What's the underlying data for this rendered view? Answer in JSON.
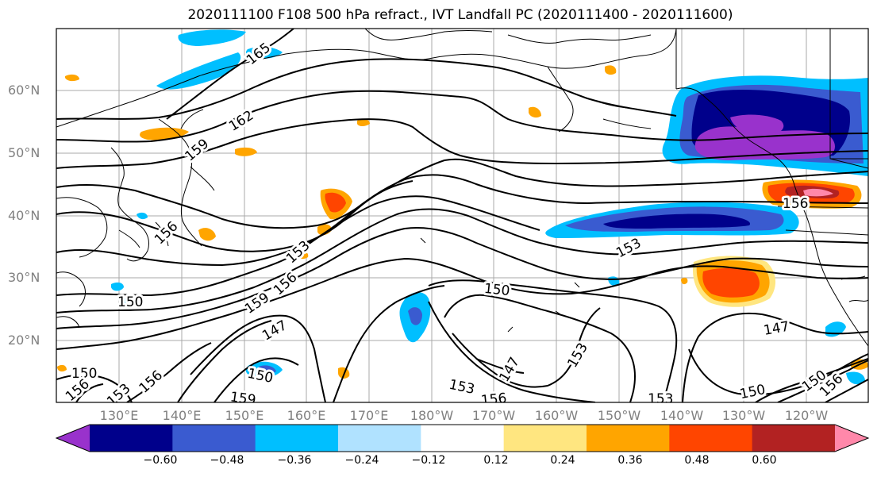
{
  "title": "2020111100 F108 500 hPa refract., IVT Landfall PC (2020111400 - 2020111600)",
  "latitude_labels": [
    "60°N",
    "50°N",
    "40°N",
    "30°N",
    "20°N"
  ],
  "longitude_labels": [
    "130°E",
    "140°E",
    "150°E",
    "160°E",
    "170°E",
    "180°W",
    "170°W",
    "160°W",
    "150°W",
    "140°W",
    "130°W",
    "120°W"
  ],
  "contour_labels": [
    "165",
    "162",
    "159",
    "156",
    "153",
    "156",
    "159",
    "150",
    "147",
    "150",
    "153",
    "156",
    "159",
    "150",
    "147",
    "153",
    "156",
    "153",
    "150",
    "147",
    "156",
    "150",
    "153",
    "153",
    "156",
    "150",
    "156"
  ],
  "colorbar": {
    "tick_labels": [
      "−0.60",
      "−0.48",
      "−0.36",
      "−0.24",
      "−0.12",
      "0.12",
      "0.24",
      "0.36",
      "0.48",
      "0.60"
    ],
    "colors": [
      "#9932cc",
      "#00008b",
      "#3a5bd0",
      "#00bfff",
      "#b0e2ff",
      "#ffffff",
      "#ffe680",
      "#ffa500",
      "#ff4500",
      "#b22222",
      "#ff88aa"
    ]
  }
}
